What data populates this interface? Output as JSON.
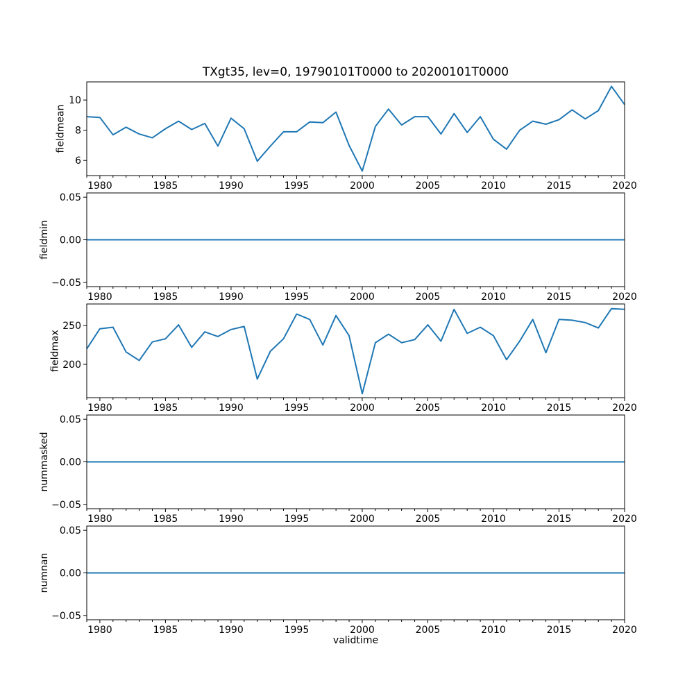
{
  "figure": {
    "title": "TXgt35, lev=0, 19790101T0000 to 20200101T0000",
    "xlabel": "validtime",
    "line_color": "#1f77b4",
    "axis_color": "#000000",
    "background_color": "#ffffff",
    "xlim": [
      1979,
      2020
    ],
    "xtick_values": [
      1980,
      1985,
      1990,
      1995,
      2000,
      2005,
      2010,
      2015,
      2020
    ],
    "xtick_labels": [
      "1980",
      "1985",
      "1990",
      "1995",
      "2000",
      "2005",
      "2010",
      "2015",
      "2020"
    ],
    "x_minor_tick_step": 1,
    "grid": false,
    "legend": "none"
  },
  "chart_data": [
    {
      "type": "line",
      "ylabel": "fieldmean",
      "x_start": 1979,
      "x_step": 1,
      "values": [
        8.9,
        8.85,
        7.7,
        8.2,
        7.75,
        7.5,
        8.1,
        8.6,
        8.05,
        8.45,
        6.95,
        8.8,
        8.1,
        5.95,
        6.95,
        7.9,
        7.9,
        8.55,
        8.5,
        9.2,
        7.0,
        5.3,
        8.25,
        9.4,
        8.35,
        8.9,
        8.9,
        7.75,
        9.1,
        7.85,
        8.9,
        7.4,
        6.75,
        8.0,
        8.6,
        8.4,
        8.7,
        9.35,
        8.75,
        9.3,
        10.9,
        9.7
      ],
      "ylim": [
        5.0,
        11.2
      ],
      "ytick_values": [
        6,
        8,
        10
      ],
      "ytick_labels": [
        "6",
        "8",
        "10"
      ]
    },
    {
      "type": "line",
      "ylabel": "fieldmin",
      "x_start": 1979,
      "x_step": 1,
      "values": [
        0,
        0,
        0,
        0,
        0,
        0,
        0,
        0,
        0,
        0,
        0,
        0,
        0,
        0,
        0,
        0,
        0,
        0,
        0,
        0,
        0,
        0,
        0,
        0,
        0,
        0,
        0,
        0,
        0,
        0,
        0,
        0,
        0,
        0,
        0,
        0,
        0,
        0,
        0,
        0,
        0,
        0
      ],
      "ylim": [
        -0.055,
        0.055
      ],
      "ytick_values": [
        -0.05,
        0,
        0.05
      ],
      "ytick_labels": [
        "−0.05",
        "0.00",
        "0.05"
      ]
    },
    {
      "type": "line",
      "ylabel": "fieldmax",
      "x_start": 1979,
      "x_step": 1,
      "values": [
        220,
        246,
        248,
        216,
        205,
        229,
        233,
        251,
        222,
        242,
        236,
        245,
        249,
        181,
        217,
        233,
        265,
        258,
        225,
        263,
        237,
        162,
        228,
        239,
        228,
        232,
        251,
        230,
        271,
        240,
        248,
        237,
        206,
        230,
        258,
        215,
        258,
        257,
        254,
        247,
        272,
        271
      ],
      "ylim": [
        157,
        278
      ],
      "ytick_values": [
        200,
        250
      ],
      "ytick_labels": [
        "200",
        "250"
      ]
    },
    {
      "type": "line",
      "ylabel": "nummasked",
      "x_start": 1979,
      "x_step": 1,
      "values": [
        0,
        0,
        0,
        0,
        0,
        0,
        0,
        0,
        0,
        0,
        0,
        0,
        0,
        0,
        0,
        0,
        0,
        0,
        0,
        0,
        0,
        0,
        0,
        0,
        0,
        0,
        0,
        0,
        0,
        0,
        0,
        0,
        0,
        0,
        0,
        0,
        0,
        0,
        0,
        0,
        0,
        0
      ],
      "ylim": [
        -0.055,
        0.055
      ],
      "ytick_values": [
        -0.05,
        0,
        0.05
      ],
      "ytick_labels": [
        "−0.05",
        "0.00",
        "0.05"
      ]
    },
    {
      "type": "line",
      "ylabel": "numnan",
      "x_start": 1979,
      "x_step": 1,
      "values": [
        0,
        0,
        0,
        0,
        0,
        0,
        0,
        0,
        0,
        0,
        0,
        0,
        0,
        0,
        0,
        0,
        0,
        0,
        0,
        0,
        0,
        0,
        0,
        0,
        0,
        0,
        0,
        0,
        0,
        0,
        0,
        0,
        0,
        0,
        0,
        0,
        0,
        0,
        0,
        0,
        0,
        0
      ],
      "ylim": [
        -0.055,
        0.055
      ],
      "ytick_values": [
        -0.05,
        0,
        0.05
      ],
      "ytick_labels": [
        "−0.05",
        "0.00",
        "0.05"
      ]
    }
  ]
}
